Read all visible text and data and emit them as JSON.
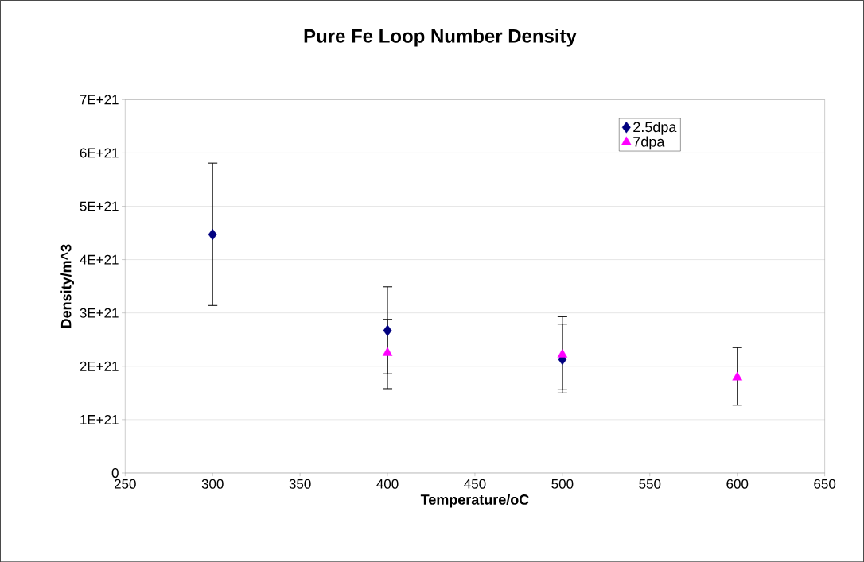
{
  "chart_data": {
    "type": "scatter",
    "title": "Pure Fe Loop Number Density",
    "xlabel": "Temperature/oC",
    "ylabel": "Density/m^3",
    "xlim": [
      250,
      650
    ],
    "xticks": [
      250,
      300,
      350,
      400,
      450,
      500,
      550,
      600,
      650
    ],
    "ylim": [
      0,
      7e+21
    ],
    "yticks": [
      0,
      {
        "value": 1e+21,
        "label": "1E+21"
      },
      {
        "value": 2e+21,
        "label": "2E+21"
      },
      {
        "value": 3e+21,
        "label": "3E+21"
      },
      {
        "value": 4e+21,
        "label": "4E+21"
      },
      {
        "value": 5e+21,
        "label": "5E+21"
      },
      {
        "value": 6e+21,
        "label": "6E+21"
      },
      {
        "value": 7e+21,
        "label": "7E+21"
      }
    ],
    "grid": "y",
    "legend": "top right",
    "series": [
      {
        "name": "2.5dpa",
        "color": "#000080",
        "marker": "diamond",
        "x": [
          300,
          400,
          500
        ],
        "values": [
          4.47e+21,
          2.67e+21,
          2.13e+21
        ],
        "errors": [
          [
            3.14e+21,
            5.81e+21
          ],
          [
            1.86e+21,
            3.49e+21
          ],
          [
            1.5e+21,
            2.93e+21
          ]
        ]
      },
      {
        "name": "7dpa",
        "color": "#ff00ff",
        "marker": "triangle",
        "x": [
          400,
          500,
          600
        ],
        "values": [
          2.25e+21,
          2.22e+21,
          1.79e+21
        ],
        "errors": [
          [
            1.58e+21,
            2.88e+21
          ],
          [
            1.56e+21,
            2.79e+21
          ],
          [
            1.27e+21,
            2.35e+21
          ]
        ]
      }
    ]
  }
}
